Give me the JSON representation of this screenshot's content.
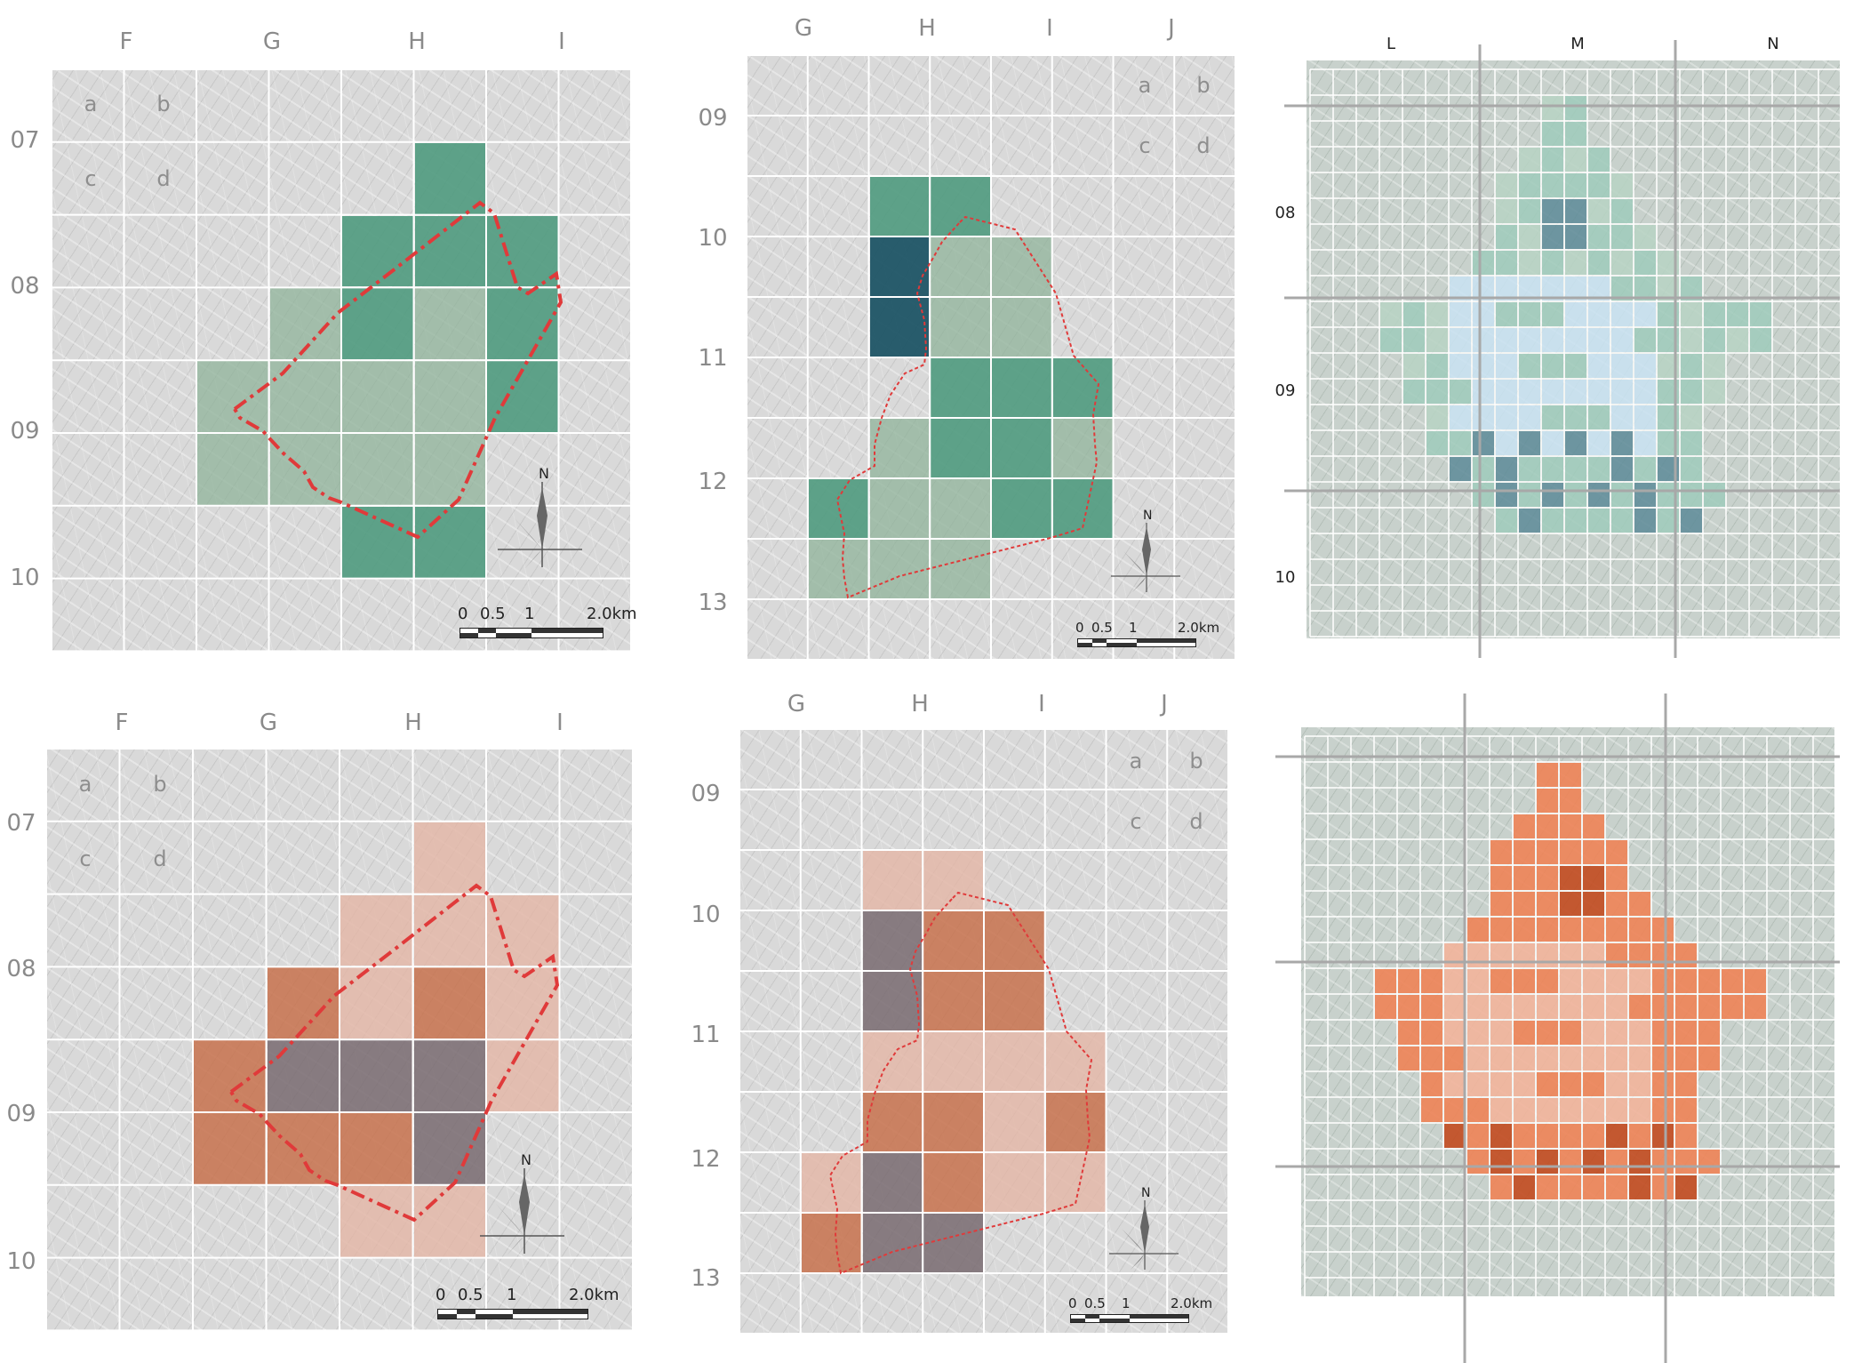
{
  "panels": [
    {
      "id": "panel-1",
      "scheme": "green",
      "col_labels": [
        "F",
        "G",
        "H",
        "I"
      ],
      "row_labels": [
        "07",
        "08",
        "09",
        "10"
      ],
      "sub_labels": [
        "a",
        "b",
        "c",
        "d"
      ],
      "scale": {
        "numbers": [
          "0",
          "0.5",
          "1",
          "2.0km"
        ]
      },
      "north_label": "N"
    },
    {
      "id": "panel-2",
      "scheme": "green",
      "col_labels": [
        "G",
        "H",
        "I",
        "J"
      ],
      "row_labels": [
        "09",
        "10",
        "11",
        "12",
        "13"
      ],
      "sub_labels": [
        "a",
        "b",
        "c",
        "d"
      ],
      "scale": {
        "numbers": [
          "0",
          "0.5",
          "1",
          "2.0km"
        ]
      },
      "north_label": "N"
    },
    {
      "id": "panel-3",
      "scheme": "green-fine",
      "col_labels": [
        "L",
        "M",
        "N"
      ],
      "row_labels": [
        "08",
        "09",
        "10"
      ]
    },
    {
      "id": "panel-4",
      "scheme": "orange",
      "col_labels": [
        "F",
        "G",
        "H",
        "I"
      ],
      "row_labels": [
        "07",
        "08",
        "09",
        "10"
      ],
      "sub_labels": [
        "a",
        "b",
        "c",
        "d"
      ],
      "scale": {
        "numbers": [
          "0",
          "0.5",
          "1",
          "2.0km"
        ]
      },
      "north_label": "N"
    },
    {
      "id": "panel-5",
      "scheme": "orange",
      "col_labels": [
        "G",
        "H",
        "I",
        "J"
      ],
      "row_labels": [
        "09",
        "10",
        "11",
        "12",
        "13"
      ],
      "sub_labels": [
        "a",
        "b",
        "c",
        "d"
      ],
      "scale": {
        "numbers": [
          "0",
          "0.5",
          "1",
          "2.0km"
        ]
      },
      "north_label": "N"
    },
    {
      "id": "panel-6",
      "scheme": "orange-fine",
      "col_labels": [],
      "row_labels": []
    }
  ],
  "colors": {
    "green": [
      "#4f9a7e",
      "#8fb39a",
      "#1f5566"
    ],
    "orange": [
      "#c7714c",
      "#e4b5a5",
      "#786a70"
    ],
    "green_fine": [
      "#9fcbbb",
      "#c9e3f2",
      "#5d8b98",
      "#b7d3c3"
    ],
    "orange_fine": [
      "#ee8357",
      "#f2b49b",
      "#c24a1f"
    ],
    "boundary": "#e03a3a"
  }
}
